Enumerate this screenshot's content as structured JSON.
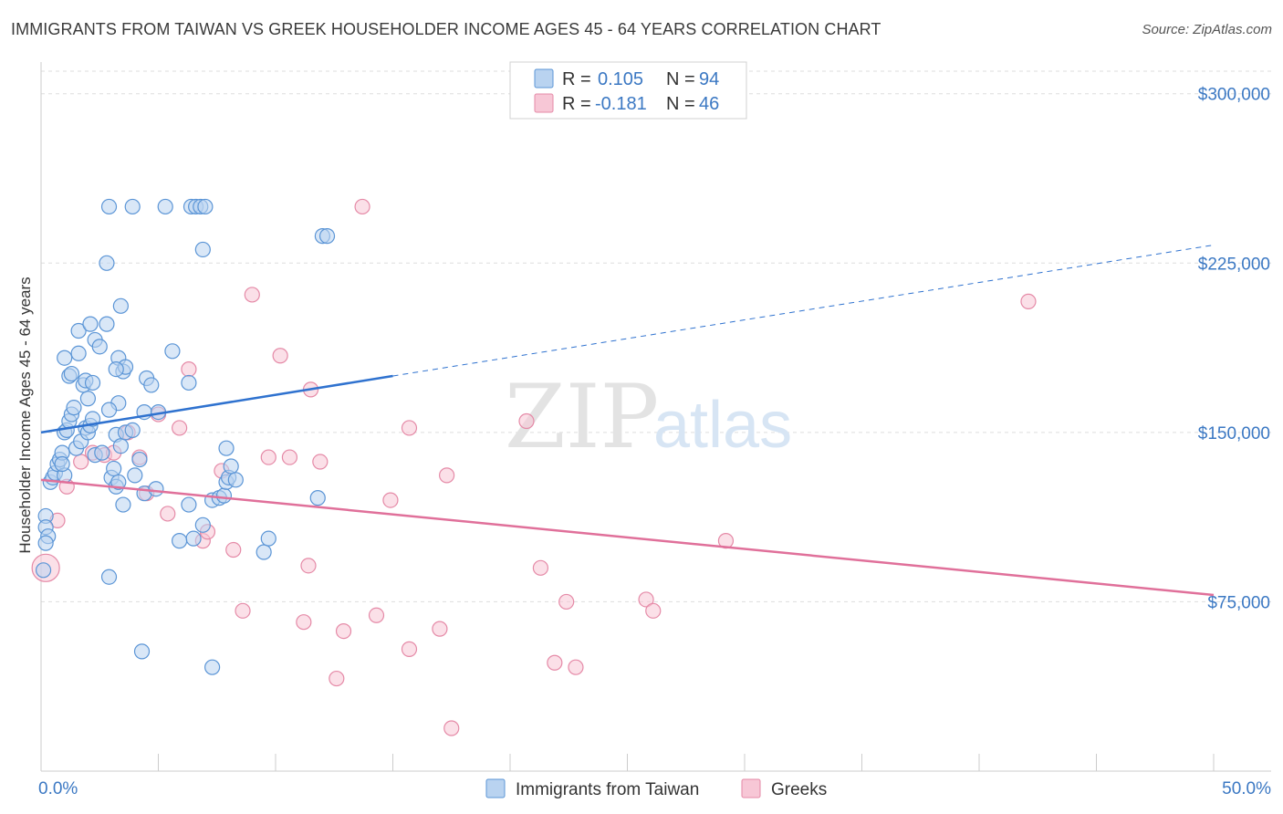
{
  "title": "IMMIGRANTS FROM TAIWAN VS GREEK HOUSEHOLDER INCOME AGES 45 - 64 YEARS CORRELATION CHART",
  "source": "Source: ZipAtlas.com",
  "watermark": {
    "zip": "ZIP",
    "atlas": "atlas"
  },
  "colors": {
    "taiwan_fill": "#b9d3f0",
    "taiwan_stroke": "#5b95d6",
    "taiwan_line": "#2f72cf",
    "greek_fill": "#f7c7d6",
    "greek_stroke": "#e58aa7",
    "greek_line": "#e0709a",
    "axis_label": "#3b78c3",
    "grid": "#dddddd"
  },
  "legend": {
    "rows": [
      {
        "r_label": "R = ",
        "r_value": "0.105",
        "n_label": "N = ",
        "n_value": "94"
      },
      {
        "r_label": "R = ",
        "r_value": "-0.181",
        "n_label": "N = ",
        "n_value": "46"
      }
    ]
  },
  "chart_data": {
    "type": "scatter",
    "title": "IMMIGRANTS FROM TAIWAN VS GREEK HOUSEHOLDER INCOME AGES 45 - 64 YEARS CORRELATION CHART",
    "xlabel": "",
    "ylabel": "Householder Income Ages 45 - 64 years",
    "xlim": [
      0,
      50
    ],
    "ylim": [
      0,
      310000
    ],
    "x_tick_labels": [
      "0.0%",
      "50.0%"
    ],
    "y_ticks": [
      75000,
      150000,
      225000,
      300000
    ],
    "y_tick_labels": [
      "$75,000",
      "$150,000",
      "$225,000",
      "$300,000"
    ],
    "grid": true,
    "legend_position": "top-center",
    "series": [
      {
        "name": "Immigrants from Taiwan",
        "r": 0.105,
        "n": 94,
        "trend": {
          "x0": 0,
          "y0": 150000,
          "x1": 15,
          "y1": 175000,
          "x_dash_end": 50,
          "y_dash_end": 233000
        },
        "points": [
          [
            0.2,
            113000
          ],
          [
            0.2,
            108000
          ],
          [
            0.3,
            104000
          ],
          [
            0.2,
            101000
          ],
          [
            0.1,
            89000
          ],
          [
            0.4,
            128000
          ],
          [
            0.5,
            130000
          ],
          [
            0.6,
            132000
          ],
          [
            0.7,
            136000
          ],
          [
            0.8,
            138000
          ],
          [
            0.9,
            141000
          ],
          [
            1.0,
            150000
          ],
          [
            1.1,
            151000
          ],
          [
            1.2,
            155000
          ],
          [
            1.3,
            158000
          ],
          [
            1.4,
            161000
          ],
          [
            1.0,
            183000
          ],
          [
            1.2,
            175000
          ],
          [
            1.3,
            176000
          ],
          [
            1.6,
            185000
          ],
          [
            1.5,
            143000
          ],
          [
            1.7,
            146000
          ],
          [
            1.9,
            152000
          ],
          [
            2.0,
            150000
          ],
          [
            2.1,
            153000
          ],
          [
            2.2,
            156000
          ],
          [
            2.0,
            165000
          ],
          [
            1.8,
            171000
          ],
          [
            1.9,
            173000
          ],
          [
            2.2,
            172000
          ],
          [
            1.6,
            195000
          ],
          [
            2.1,
            198000
          ],
          [
            2.3,
            191000
          ],
          [
            2.5,
            188000
          ],
          [
            2.8,
            198000
          ],
          [
            3.3,
            183000
          ],
          [
            3.5,
            177000
          ],
          [
            3.6,
            179000
          ],
          [
            3.2,
            178000
          ],
          [
            4.5,
            174000
          ],
          [
            4.7,
            171000
          ],
          [
            5.6,
            186000
          ],
          [
            6.3,
            172000
          ],
          [
            3.4,
            206000
          ],
          [
            2.8,
            225000
          ],
          [
            2.9,
            250000
          ],
          [
            3.9,
            250000
          ],
          [
            5.3,
            250000
          ],
          [
            6.4,
            250000
          ],
          [
            6.6,
            250000
          ],
          [
            6.8,
            250000
          ],
          [
            7.0,
            250000
          ],
          [
            6.9,
            231000
          ],
          [
            12.0,
            237000
          ],
          [
            12.2,
            237000
          ],
          [
            2.3,
            140000
          ],
          [
            2.6,
            141000
          ],
          [
            3.0,
            130000
          ],
          [
            3.2,
            126000
          ],
          [
            3.3,
            128000
          ],
          [
            3.5,
            118000
          ],
          [
            3.1,
            134000
          ],
          [
            3.2,
            149000
          ],
          [
            3.4,
            144000
          ],
          [
            3.6,
            150000
          ],
          [
            3.9,
            151000
          ],
          [
            4.0,
            131000
          ],
          [
            4.2,
            138000
          ],
          [
            4.4,
            123000
          ],
          [
            4.9,
            125000
          ],
          [
            4.4,
            159000
          ],
          [
            5.0,
            159000
          ],
          [
            3.3,
            163000
          ],
          [
            2.9,
            160000
          ],
          [
            7.3,
            120000
          ],
          [
            7.6,
            121000
          ],
          [
            7.8,
            122000
          ],
          [
            7.9,
            128000
          ],
          [
            8.0,
            130000
          ],
          [
            8.1,
            135000
          ],
          [
            8.3,
            129000
          ],
          [
            7.9,
            143000
          ],
          [
            11.8,
            121000
          ],
          [
            6.5,
            103000
          ],
          [
            6.9,
            109000
          ],
          [
            5.9,
            102000
          ],
          [
            9.5,
            97000
          ],
          [
            9.7,
            103000
          ],
          [
            2.9,
            86000
          ],
          [
            4.3,
            53000
          ],
          [
            7.3,
            46000
          ],
          [
            6.3,
            118000
          ],
          [
            1.0,
            131000
          ],
          [
            0.9,
            136000
          ]
        ]
      },
      {
        "name": "Greeks",
        "r": -0.181,
        "n": 46,
        "trend": {
          "x0": 0,
          "y0": 129000,
          "x1": 50,
          "y1": 78000
        },
        "points": [
          [
            0.2,
            90000
          ],
          [
            0.7,
            111000
          ],
          [
            1.1,
            126000
          ],
          [
            1.7,
            137000
          ],
          [
            2.2,
            141000
          ],
          [
            2.7,
            140000
          ],
          [
            3.1,
            141000
          ],
          [
            3.7,
            150000
          ],
          [
            4.2,
            139000
          ],
          [
            4.5,
            123000
          ],
          [
            5.0,
            158000
          ],
          [
            5.4,
            114000
          ],
          [
            5.9,
            152000
          ],
          [
            6.3,
            178000
          ],
          [
            6.9,
            102000
          ],
          [
            7.1,
            106000
          ],
          [
            7.7,
            133000
          ],
          [
            8.2,
            98000
          ],
          [
            8.6,
            71000
          ],
          [
            9.0,
            211000
          ],
          [
            9.7,
            139000
          ],
          [
            10.2,
            184000
          ],
          [
            10.6,
            139000
          ],
          [
            11.2,
            66000
          ],
          [
            11.4,
            91000
          ],
          [
            11.5,
            169000
          ],
          [
            11.9,
            137000
          ],
          [
            12.6,
            41000
          ],
          [
            12.9,
            62000
          ],
          [
            13.7,
            250000
          ],
          [
            14.3,
            69000
          ],
          [
            14.9,
            120000
          ],
          [
            15.7,
            54000
          ],
          [
            15.7,
            152000
          ],
          [
            17.0,
            63000
          ],
          [
            17.3,
            131000
          ],
          [
            17.5,
            19000
          ],
          [
            20.7,
            155000
          ],
          [
            21.3,
            90000
          ],
          [
            21.9,
            48000
          ],
          [
            22.4,
            75000
          ],
          [
            22.8,
            46000
          ],
          [
            25.8,
            76000
          ],
          [
            26.1,
            71000
          ],
          [
            29.2,
            102000
          ],
          [
            42.1,
            208000
          ]
        ]
      }
    ]
  },
  "bottom_legend": {
    "items": [
      {
        "label": "Immigrants from Taiwan"
      },
      {
        "label": "Greeks"
      }
    ]
  }
}
